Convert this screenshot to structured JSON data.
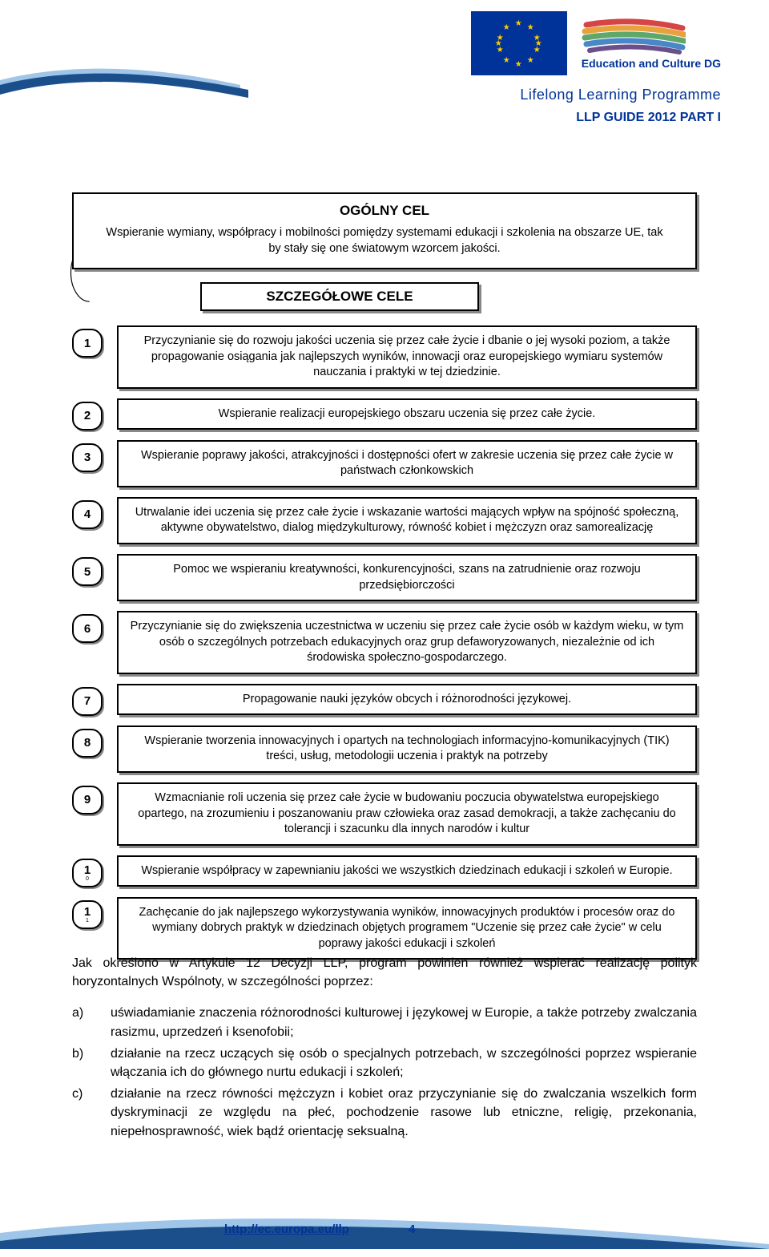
{
  "colors": {
    "eu_blue": "#003399",
    "eu_yellow": "#ffcc00",
    "wave_dark": "#1b4f8b",
    "wave_light": "#9fc5e8",
    "shadow": "#888888",
    "border": "#000000",
    "bg": "#ffffff",
    "stroke1": "#d64545",
    "stroke2": "#e8a23d",
    "stroke3": "#5fa86a",
    "stroke4": "#4a87c7",
    "stroke5": "#6b4f8b"
  },
  "header": {
    "edu_text": "Education and Culture DG",
    "llp_text": "Lifelong Learning Programme",
    "guide_text": "LLP GUIDE 2012 PART I"
  },
  "goal": {
    "title": "OGÓLNY CEL",
    "text": "Wspieranie wymiany, współpracy i mobilności pomiędzy systemami edukacji i szkolenia na obszarze UE, tak by stały się one światowym wzorcem jakości."
  },
  "subtitle": "SZCZEGÓŁOWE CELE",
  "items": [
    {
      "n": "1",
      "text": "Przyczynianie się do rozwoju jakości uczenia się przez całe życie i dbanie o jej wysoki poziom, a także propagowanie osiągania jak najlepszych wyników, innowacji oraz europejskiego wymiaru systemów nauczania i praktyki w tej dziedzinie.",
      "h": "h50"
    },
    {
      "n": "2",
      "text": "Wspieranie realizacji europejskiego obszaru uczenia się przez całe życie.",
      "h": "h36"
    },
    {
      "n": "3",
      "text": "Wspieranie poprawy jakości, atrakcyjności i dostępności ofert w zakresie uczenia się przez całe życie w państwach członkowskich",
      "h": "h44"
    },
    {
      "n": "4",
      "text": "Utrwalanie idei uczenia się przez całe życie i wskazanie wartości mających wpływ na spójność społeczną, aktywne obywatelstwo, dialog międzykulturowy, równość kobiet i mężczyzn oraz samorealizację",
      "h": "h50"
    },
    {
      "n": "5",
      "text": "Pomoc we wspieraniu kreatywności, konkurencyjności, szans na zatrudnienie oraz rozwoju przedsiębiorczości",
      "h": "h44"
    },
    {
      "n": "6",
      "text": "Przyczynianie się do zwiększenia uczestnictwa w uczeniu się przez całe życie osób w każdym wieku, w tym osób o szczególnych potrzebach edukacyjnych oraz grup defaworyzowanych, niezależnie od ich środowiska społeczno-gospodarczego.",
      "h": "h60"
    },
    {
      "n": "7",
      "text": "Propagowanie nauki języków obcych i różnorodności językowej.",
      "h": "h36"
    },
    {
      "n": "8",
      "text": "Wspieranie tworzenia innowacyjnych i opartych na technologiach informacyjno-komunikacyjnych (TIK) treści, usług, metodologii uczenia i praktyk na potrzeby",
      "h": "h44"
    },
    {
      "n": "9",
      "text": "Wzmacnianie roli uczenia się przez całe życie w budowaniu poczucia obywatelstwa europejskiego opartego, na zrozumieniu i poszanowaniu praw człowieka oraz zasad demokracji, a także zachęcaniu do tolerancji i szacunku dla innych narodów i kultur",
      "h": "h60"
    },
    {
      "n": "1",
      "sub": "0",
      "text": "Wspieranie współpracy w zapewnianiu jakości we wszystkich dziedzinach edukacji i szkoleń w Europie.",
      "h": "h44"
    },
    {
      "n": "1",
      "sub": "1",
      "text": "Zachęcanie do jak najlepszego wykorzystywania wyników, innowacyjnych produktów i procesów oraz do wymiany dobrych praktyk w dziedzinach objętych programem \"Uczenie się przez całe życie\" w celu poprawy jakości edukacji i szkoleń",
      "h": "h60"
    }
  ],
  "body": {
    "intro": "Jak określono w Artykule 12 Decyzji LLP, program powinien również wspierać realizację polityk horyzontalnych Wspólnoty, w szczególności poprzez:",
    "list": [
      {
        "lbl": "a)",
        "txt": "uświadamianie znaczenia różnorodności kulturowej i językowej w Europie, a także potrzeby zwalczania rasizmu, uprzedzeń i ksenofobii;"
      },
      {
        "lbl": "b)",
        "txt": "działanie na rzecz uczących się osób o specjalnych potrzebach, w szczególności poprzez wspieranie włączania ich do głównego nurtu edukacji i szkoleń;"
      },
      {
        "lbl": "c)",
        "txt": "działanie na rzecz równości mężczyzn i kobiet oraz przyczynianie się do zwalczania wszelkich form dyskryminacji ze względu na płeć, pochodzenie rasowe lub etniczne, religię, przekonania, niepełnosprawność, wiek bądź orientację seksualną."
      }
    ]
  },
  "footer": {
    "link": "http://ec.europa.eu/llp",
    "page": "4"
  }
}
